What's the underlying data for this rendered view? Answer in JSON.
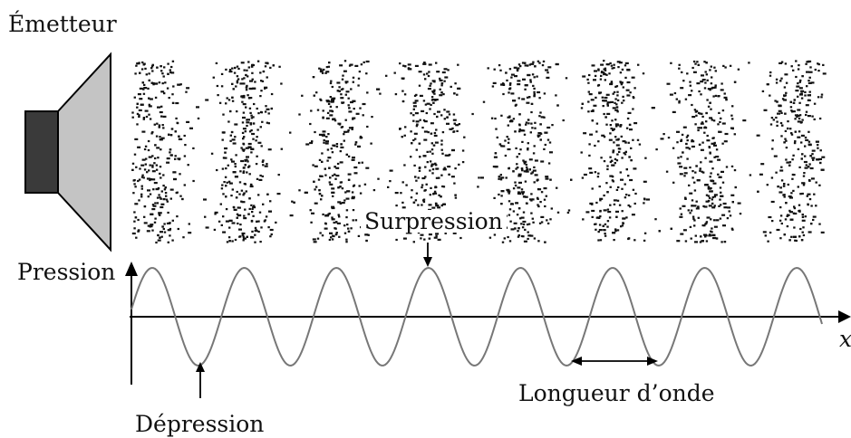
{
  "labels": {
    "emitter": "Émetteur",
    "pressure_axis": "Pression",
    "compression": "Surpression",
    "rarefaction": "Dépression",
    "wavelength": "Longueur d’onde",
    "x_axis": "x"
  },
  "wave": {
    "crest_count": 8,
    "periods_shown": 7.6
  },
  "colors": {
    "speaker_body": "#3a3a3a",
    "speaker_cone": "#c4c4c4",
    "particles": "#111111",
    "wave_line": "#777777",
    "axis": "#000000"
  },
  "icons": {
    "emitter": "loudspeaker-icon"
  }
}
